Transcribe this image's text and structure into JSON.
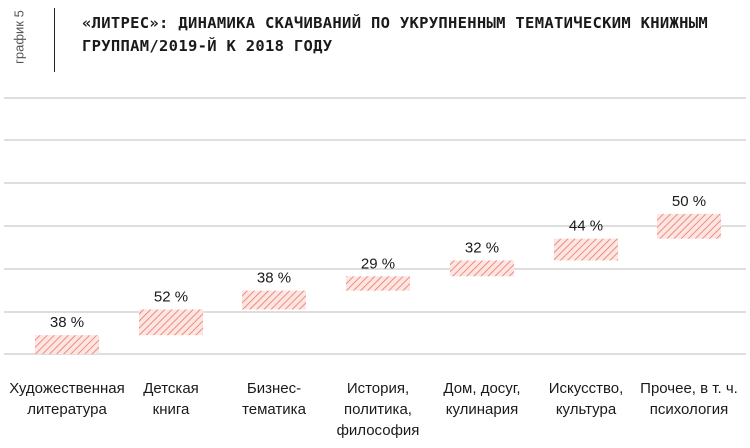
{
  "figure_label": "график 5",
  "chart_data": {
    "type": "bar",
    "title": "«ЛИТРЕС»: ДИНАМИКА СКАЧИВАНИЙ ПО УКРУПНЕННЫМ ТЕМАТИЧЕСКИМ КНИЖНЫМ ГРУППАМ/2019-Й К 2018 ГОДУ",
    "categories": [
      {
        "line1": "Художественная",
        "line2": "литература",
        "line3": ""
      },
      {
        "line1": "Детская",
        "line2": "книга",
        "line3": ""
      },
      {
        "line1": "Бизнес-",
        "line2": "тематика",
        "line3": ""
      },
      {
        "line1": "История,",
        "line2": "политика,",
        "line3": "философия"
      },
      {
        "line1": "Дом, досуг,",
        "line2": "кулинария",
        "line3": ""
      },
      {
        "line1": "Искусство,",
        "line2": "культура",
        "line3": ""
      },
      {
        "line1": "Прочее, в т. ч.",
        "line2": "психология",
        "line3": ""
      }
    ],
    "values": [
      38,
      52,
      38,
      29,
      32,
      44,
      50
    ],
    "value_labels": [
      "38 %",
      "52 %",
      "38 %",
      "29 %",
      "32 %",
      "44 %",
      "50 %"
    ],
    "grid": true,
    "legend": "none",
    "colors": {
      "bar_stroke": "#e8766a",
      "bar_fill": "#fde6e2",
      "grid": "#bdbdbd"
    }
  }
}
